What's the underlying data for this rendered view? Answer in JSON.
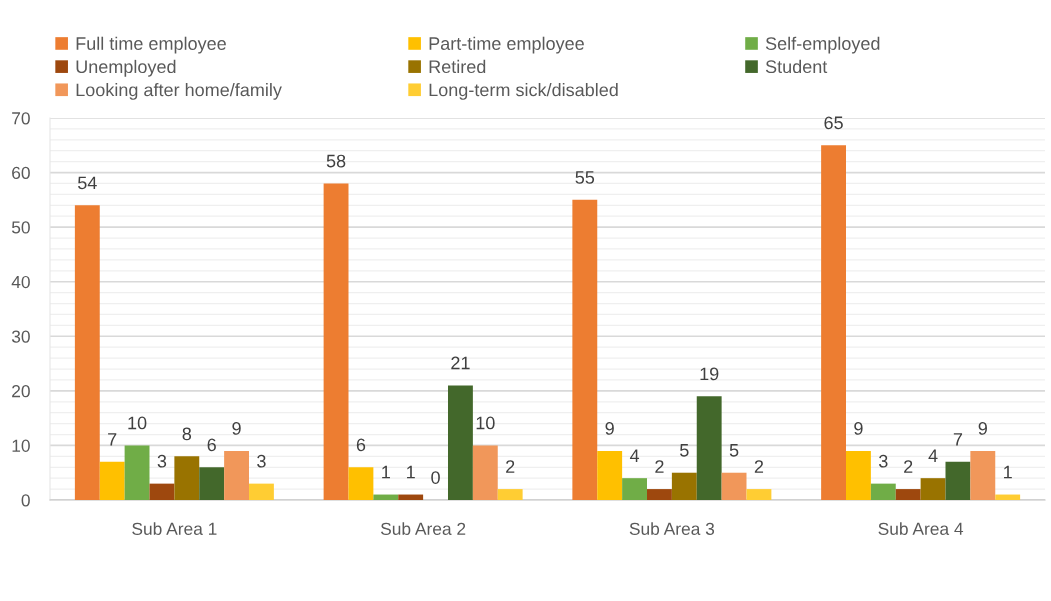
{
  "chart_data": {
    "type": "bar",
    "categories": [
      "Sub Area 1",
      "Sub Area 2",
      "Sub Area 3",
      "Sub Area 4"
    ],
    "series": [
      {
        "name": "Full time employee",
        "color": "#ed7d31",
        "values": [
          54,
          58,
          55,
          65
        ]
      },
      {
        "name": "Part-time employee",
        "color": "#ffc000",
        "values": [
          7,
          6,
          9,
          9
        ]
      },
      {
        "name": "Self-employed",
        "color": "#70ad47",
        "values": [
          10,
          1,
          4,
          3
        ]
      },
      {
        "name": "Unemployed",
        "color": "#9e480e",
        "values": [
          3,
          1,
          2,
          2
        ]
      },
      {
        "name": "Retired",
        "color": "#997300",
        "values": [
          8,
          0,
          5,
          4
        ]
      },
      {
        "name": "Student",
        "color": "#43682b",
        "values": [
          6,
          21,
          19,
          7
        ]
      },
      {
        "name": "Looking after home/family",
        "color": "#f1975a",
        "values": [
          9,
          10,
          5,
          9
        ]
      },
      {
        "name": "Long-term sick/disabled",
        "color": "#ffcd33",
        "values": [
          3,
          2,
          2,
          1
        ]
      }
    ],
    "ylim": [
      0,
      70
    ],
    "yticks": [
      0,
      {
        "value": 2,
        "label": null
      },
      {
        "value": 4,
        "label": null
      },
      {
        "value": 6,
        "label": null
      },
      {
        "value": 8,
        "label": null
      },
      10,
      {
        "value": 12,
        "label": null
      },
      {
        "value": 14,
        "label": null
      },
      {
        "value": 16,
        "label": null
      },
      {
        "value": 18,
        "label": null
      },
      20,
      {
        "value": 22,
        "label": null
      },
      {
        "value": 24,
        "label": null
      },
      {
        "value": 26,
        "label": null
      },
      {
        "value": 28,
        "label": null
      },
      30,
      {
        "value": 32,
        "label": null
      },
      {
        "value": 34,
        "label": null
      },
      {
        "value": 36,
        "label": null
      },
      {
        "value": 38,
        "label": null
      },
      40,
      {
        "value": 42,
        "label": null
      },
      {
        "value": 44,
        "label": null
      },
      {
        "value": 46,
        "label": null
      },
      {
        "value": 48,
        "label": null
      },
      50,
      {
        "value": 52,
        "label": null
      },
      {
        "value": 54,
        "label": null
      },
      {
        "value": 56,
        "label": null
      },
      {
        "value": 58,
        "label": null
      },
      60,
      {
        "value": 62,
        "label": null
      },
      {
        "value": 64,
        "label": null
      },
      {
        "value": 66,
        "label": null
      },
      {
        "value": 68,
        "label": null
      },
      70
    ],
    "grid": "y",
    "legend": "top",
    "data_labels": true
  }
}
